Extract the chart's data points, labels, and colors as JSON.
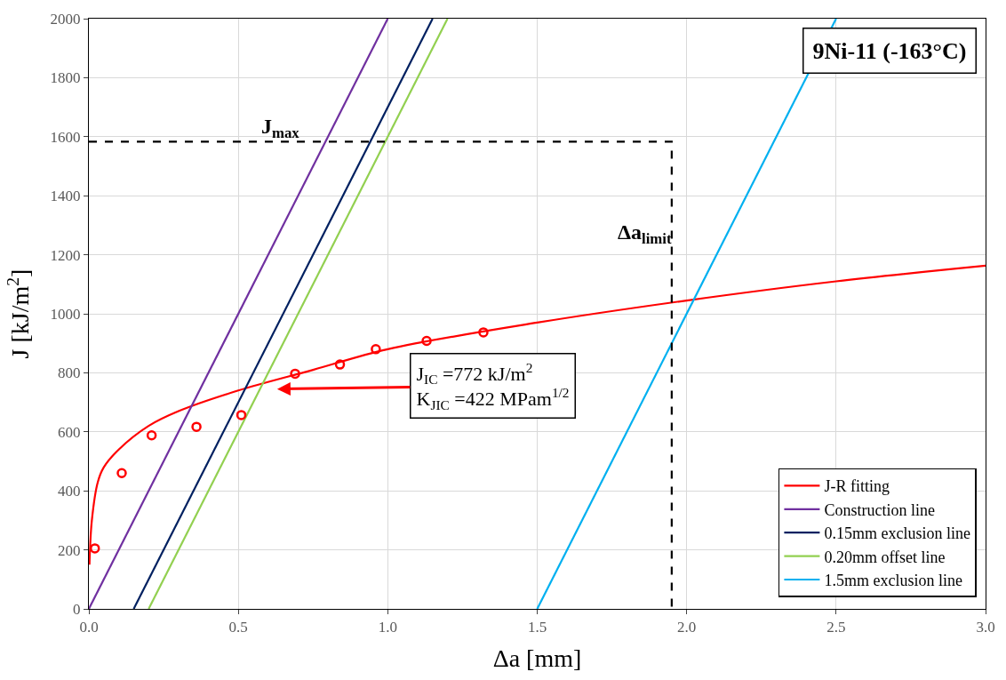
{
  "chart_data": {
    "type": "line",
    "title": "9Ni-11 (-163°C)",
    "xlabel": "Δa [mm]",
    "ylabel": "J [kJ/m$^{2}$]",
    "xlim": [
      0,
      3
    ],
    "xticks": [
      {
        "value": 0,
        "label": "0.0"
      },
      0.5,
      {
        "value": 1,
        "label": "1.0"
      },
      1.5,
      {
        "value": 2,
        "label": "2.0"
      },
      2.5,
      {
        "value": 3,
        "label": "3.0"
      }
    ],
    "ylim": [
      0,
      2000
    ],
    "yticks": [
      0,
      200,
      400,
      600,
      800,
      1000,
      1200,
      1400,
      1600,
      1800,
      2000
    ],
    "grid": true,
    "legend": "bottom right",
    "series": [
      {
        "name": "J-R fitting",
        "color": "#ff0000",
        "x": [
          0.002,
          0.01,
          0.03,
          0.05,
          0.1,
          0.2,
          0.3,
          0.5,
          0.75,
          1.0,
          1.5,
          2.0,
          2.5,
          3.0
        ],
        "values": [
          150,
          300,
          430,
          480,
          540,
          620,
          670,
          740,
          810,
          880,
          970,
          1045,
          1110,
          1163
        ]
      },
      {
        "name": "Construction line",
        "color": "#7030a0",
        "x": [
          0,
          1.0
        ],
        "values": [
          0,
          2000
        ]
      },
      {
        "name": "0.15mm exclusion line",
        "color": "#002060",
        "x": [
          0.15,
          1.15
        ],
        "values": [
          0,
          2000
        ]
      },
      {
        "name": "0.20mm offset line",
        "color": "#92d050",
        "x": [
          0.2,
          1.2
        ],
        "values": [
          0,
          2000
        ]
      },
      {
        "name": "1.5mm exclusion line",
        "color": "#00b0f0",
        "x": [
          1.5,
          2.5
        ],
        "values": [
          0,
          2000
        ]
      },
      {
        "type": "scatter",
        "marker": "circle",
        "color": "#ff0000",
        "x": [
          0.02,
          0.11,
          0.21,
          0.36,
          0.51,
          0.69,
          0.84,
          0.96,
          1.13,
          1.32
        ],
        "values": [
          205,
          460,
          588,
          617,
          657,
          797,
          828,
          880,
          908,
          937
        ]
      },
      {
        "color": "#000000",
        "line_style": "dashed",
        "x": [
          0,
          1.95,
          1.95
        ],
        "values": [
          1583,
          1583,
          0
        ]
      }
    ],
    "annotations": [
      "J$_{max}$",
      "Δa$_{limit}$",
      "J$_{IC}$ =772 kJ/m$^{2}$\nK$_{JIC}$ =422 MPam$^{1/2}$"
    ]
  }
}
